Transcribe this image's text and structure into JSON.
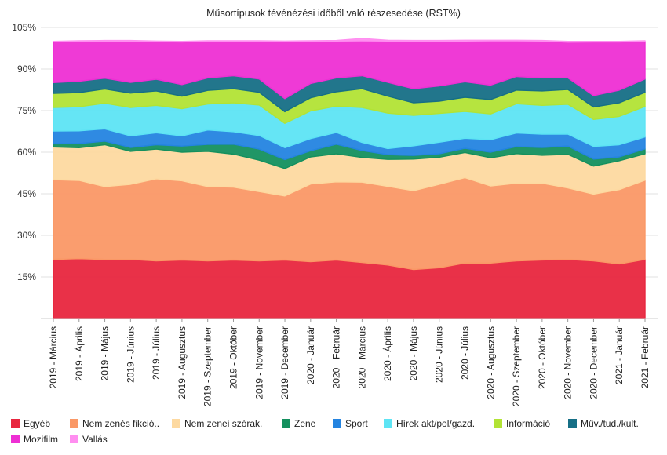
{
  "chart_data": {
    "type": "area",
    "stacked": true,
    "title": "Műsortípusok tévénézési időből való részesedése (RST%)",
    "xlabel": "",
    "ylabel": "",
    "ylim": [
      0,
      105
    ],
    "yticks": [
      "105%",
      "90%",
      "75%",
      "60%",
      "45%",
      "30%",
      "15%"
    ],
    "ytick_values": [
      105,
      90,
      75,
      60,
      45,
      30,
      15
    ],
    "legend_position": "bottom",
    "grid": "horizontal",
    "categories": [
      "2019 - Március",
      "2019 - Április",
      "2019 - Május",
      "2019 - Június",
      "2019 - Július",
      "2019 - Augusztus",
      "2019 - Szeptember",
      "2019 - Október",
      "2019 - November",
      "2019 - December",
      "2020 - Január",
      "2020 - Február",
      "2020 - Március",
      "2020 - Április",
      "2020 - Május",
      "2020 - Június",
      "2020 - Július",
      "2020 - Augusztus",
      "2020 - Szeptember",
      "2020 - Október",
      "2020 - November",
      "2020 - December",
      "2021 - Január",
      "2021 - Február"
    ],
    "series": [
      {
        "name": "Egyéb",
        "color": "#e8263e",
        "values": [
          21.3,
          21.6,
          21.3,
          21.3,
          20.8,
          21.1,
          20.8,
          21.1,
          20.8,
          21.1,
          20.5,
          21.1,
          20.2,
          19.3,
          17.7,
          18.3,
          20.0,
          20.0,
          20.8,
          21.1,
          21.3,
          20.8,
          19.7,
          21.3
        ]
      },
      {
        "name": "Nem zenés fikció..",
        "color": "#fa9866",
        "values": [
          28.8,
          28.2,
          26.3,
          27.1,
          29.6,
          28.6,
          26.8,
          26.3,
          25.0,
          23.1,
          28.0,
          28.2,
          29.0,
          28.4,
          28.4,
          30.1,
          30.8,
          27.8,
          28.0,
          27.7,
          25.8,
          24.1,
          26.8,
          28.6
        ]
      },
      {
        "name": "Nem zenei szórak.",
        "color": "#fdd9a0",
        "values": [
          11.8,
          11.8,
          15.1,
          11.9,
          10.7,
          10.3,
          12.7,
          11.9,
          11.3,
          9.9,
          9.8,
          10.1,
          8.9,
          9.7,
          11.4,
          9.8,
          9.1,
          10.2,
          10.7,
          10.1,
          12.1,
          10.1,
          10.4,
          9.5
        ]
      },
      {
        "name": "Zene",
        "color": "#14905e",
        "values": [
          1.1,
          1.5,
          1.3,
          1.4,
          1.6,
          2.2,
          2.5,
          3.6,
          4.0,
          3.2,
          2.2,
          3.5,
          2.5,
          1.7,
          1.3,
          1.2,
          1.5,
          2.0,
          2.5,
          2.8,
          3.0,
          2.5,
          1.4,
          1.8
        ]
      },
      {
        "name": "Sport",
        "color": "#2484e0",
        "values": [
          4.6,
          4.6,
          4.4,
          4.2,
          4.3,
          3.7,
          5.2,
          4.5,
          4.9,
          4.3,
          4.4,
          4.2,
          2.9,
          2.2,
          3.5,
          4.2,
          3.6,
          4.5,
          4.9,
          4.8,
          4.3,
          4.6,
          4.4,
          4.3
        ]
      },
      {
        "name": "Hírek akt/pol/gazd.",
        "color": "#5de4f4",
        "values": [
          8.5,
          8.7,
          9.3,
          10.2,
          9.9,
          9.8,
          9.4,
          10.4,
          11.0,
          8.8,
          10.0,
          9.5,
          12.6,
          12.8,
          11.0,
          10.4,
          9.7,
          9.3,
          10.6,
          10.4,
          10.8,
          9.7,
          10.2,
          11.0
        ]
      },
      {
        "name": "Információ",
        "color": "#b2e335",
        "values": [
          5.1,
          5.1,
          5.1,
          5.2,
          5.2,
          4.5,
          4.9,
          5.1,
          4.6,
          4.2,
          4.7,
          5.2,
          6.8,
          6.1,
          4.5,
          4.4,
          5.1,
          5.2,
          4.9,
          5.2,
          5.3,
          4.5,
          4.9,
          5.1
        ]
      },
      {
        "name": "Műv./tud./kult.",
        "color": "#166f86",
        "values": [
          3.9,
          4.1,
          3.9,
          3.9,
          4.2,
          4.2,
          4.5,
          4.7,
          4.8,
          4.7,
          5.2,
          5.0,
          4.7,
          5.0,
          5.1,
          5.5,
          5.6,
          5.2,
          4.9,
          4.7,
          4.2,
          4.1,
          4.6,
          4.8
        ]
      },
      {
        "name": "Mozifilm",
        "color": "#ee2fd4",
        "values": [
          14.8,
          14.4,
          13.4,
          14.9,
          13.6,
          15.4,
          13.2,
          12.4,
          13.6,
          20.6,
          15.2,
          13.3,
          12.6,
          14.9,
          17.1,
          16.1,
          14.7,
          16.0,
          12.9,
          13.3,
          12.9,
          19.4,
          17.4,
          13.6
        ]
      },
      {
        "name": "Vallás",
        "color": "#ff8ef0",
        "values": [
          0.1,
          0.2,
          0.2,
          0.2,
          0.2,
          0.2,
          0.2,
          0.2,
          0.2,
          0.2,
          0.2,
          0.2,
          0.8,
          0.3,
          0.3,
          0.3,
          0.3,
          0.2,
          0.2,
          0.2,
          0.3,
          0.2,
          0.2,
          0.2
        ]
      }
    ]
  }
}
